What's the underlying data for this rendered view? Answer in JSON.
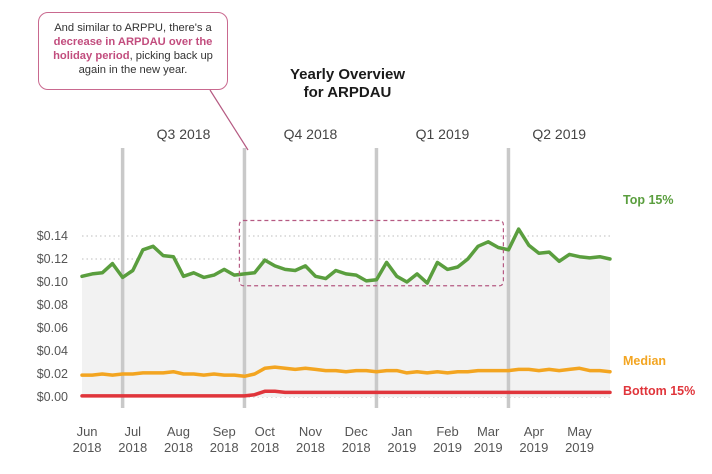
{
  "callout": {
    "text_before": "And similar to ARPPU, there's a ",
    "highlight": "decrease in ARPDAU over the holiday period",
    "text_after": ", picking back up again in the new year."
  },
  "title_line1": "Yearly Overview",
  "title_line2": "for ARPDAU",
  "colors": {
    "top": "#5a9e3e",
    "median": "#f3a521",
    "bottom": "#e0353b",
    "area": "#f2f2f2",
    "callout_accent": "#c24d7e"
  },
  "chart_data": {
    "type": "line",
    "title": "Yearly Overview for ARPDAU",
    "xlabel": "",
    "ylabel": "",
    "ylim": [
      0,
      0.15
    ],
    "yticks": [
      "$0.00",
      "$0.02",
      "$0.04",
      "$0.06",
      "$0.08",
      "$0.10",
      "$0.12",
      "$0.14"
    ],
    "ytick_values": [
      0,
      0.02,
      0.04,
      0.06,
      0.08,
      0.1,
      0.12,
      0.14
    ],
    "x_month_labels": [
      {
        "month": "Jun",
        "year": "2018",
        "week": 0.5
      },
      {
        "month": "Jul",
        "year": "2018",
        "week": 5
      },
      {
        "month": "Aug",
        "year": "2018",
        "week": 9.5
      },
      {
        "month": "Sep",
        "year": "2018",
        "week": 14
      },
      {
        "month": "Oct",
        "year": "2018",
        "week": 18
      },
      {
        "month": "Nov",
        "year": "2018",
        "week": 22.5
      },
      {
        "month": "Dec",
        "year": "2018",
        "week": 27
      },
      {
        "month": "Jan",
        "year": "2019",
        "week": 31.5
      },
      {
        "month": "Feb",
        "year": "2019",
        "week": 36
      },
      {
        "month": "Mar",
        "year": "2019",
        "week": 40
      },
      {
        "month": "Apr",
        "year": "2019",
        "week": 44.5
      },
      {
        "month": "May",
        "year": "2019",
        "week": 49
      }
    ],
    "quarters": [
      {
        "label": "Q3 2018",
        "start_week": 4,
        "end_week": 16
      },
      {
        "label": "Q4 2018",
        "start_week": 16,
        "end_week": 29
      },
      {
        "label": "Q1 2019",
        "start_week": 29,
        "end_week": 42
      },
      {
        "label": "Q2 2019",
        "start_week": 42,
        "end_week": 52
      }
    ],
    "highlight_weeks": [
      15.5,
      41.5
    ],
    "highlight_range": [
      0.095,
      0.15
    ],
    "series": [
      {
        "name": "Top 15%",
        "values": [
          0.105,
          0.107,
          0.108,
          0.116,
          0.104,
          0.11,
          0.128,
          0.131,
          0.123,
          0.122,
          0.105,
          0.108,
          0.104,
          0.106,
          0.111,
          0.106,
          0.107,
          0.108,
          0.119,
          0.114,
          0.111,
          0.11,
          0.114,
          0.105,
          0.103,
          0.11,
          0.107,
          0.106,
          0.101,
          0.102,
          0.117,
          0.105,
          0.1,
          0.107,
          0.099,
          0.117,
          0.111,
          0.113,
          0.12,
          0.131,
          0.135,
          0.13,
          0.128,
          0.146,
          0.132,
          0.125,
          0.126,
          0.118,
          0.124,
          0.122,
          0.121,
          0.122,
          0.12
        ]
      },
      {
        "name": "Median",
        "values": [
          0.019,
          0.019,
          0.02,
          0.019,
          0.02,
          0.02,
          0.021,
          0.021,
          0.021,
          0.022,
          0.02,
          0.02,
          0.019,
          0.02,
          0.019,
          0.019,
          0.018,
          0.02,
          0.025,
          0.026,
          0.025,
          0.024,
          0.025,
          0.024,
          0.023,
          0.023,
          0.022,
          0.023,
          0.023,
          0.022,
          0.023,
          0.023,
          0.021,
          0.022,
          0.021,
          0.022,
          0.021,
          0.022,
          0.022,
          0.023,
          0.023,
          0.023,
          0.023,
          0.024,
          0.024,
          0.023,
          0.024,
          0.023,
          0.024,
          0.025,
          0.023,
          0.023,
          0.022
        ]
      },
      {
        "name": "Bottom 15%",
        "values": [
          0.001,
          0.001,
          0.001,
          0.001,
          0.001,
          0.001,
          0.001,
          0.001,
          0.001,
          0.001,
          0.001,
          0.001,
          0.001,
          0.001,
          0.001,
          0.001,
          0.001,
          0.002,
          0.005,
          0.005,
          0.004,
          0.004,
          0.004,
          0.004,
          0.004,
          0.004,
          0.004,
          0.004,
          0.004,
          0.004,
          0.004,
          0.004,
          0.004,
          0.004,
          0.004,
          0.004,
          0.004,
          0.004,
          0.004,
          0.004,
          0.004,
          0.004,
          0.004,
          0.004,
          0.004,
          0.004,
          0.004,
          0.004,
          0.004,
          0.004,
          0.004,
          0.004,
          0.004
        ]
      }
    ]
  }
}
